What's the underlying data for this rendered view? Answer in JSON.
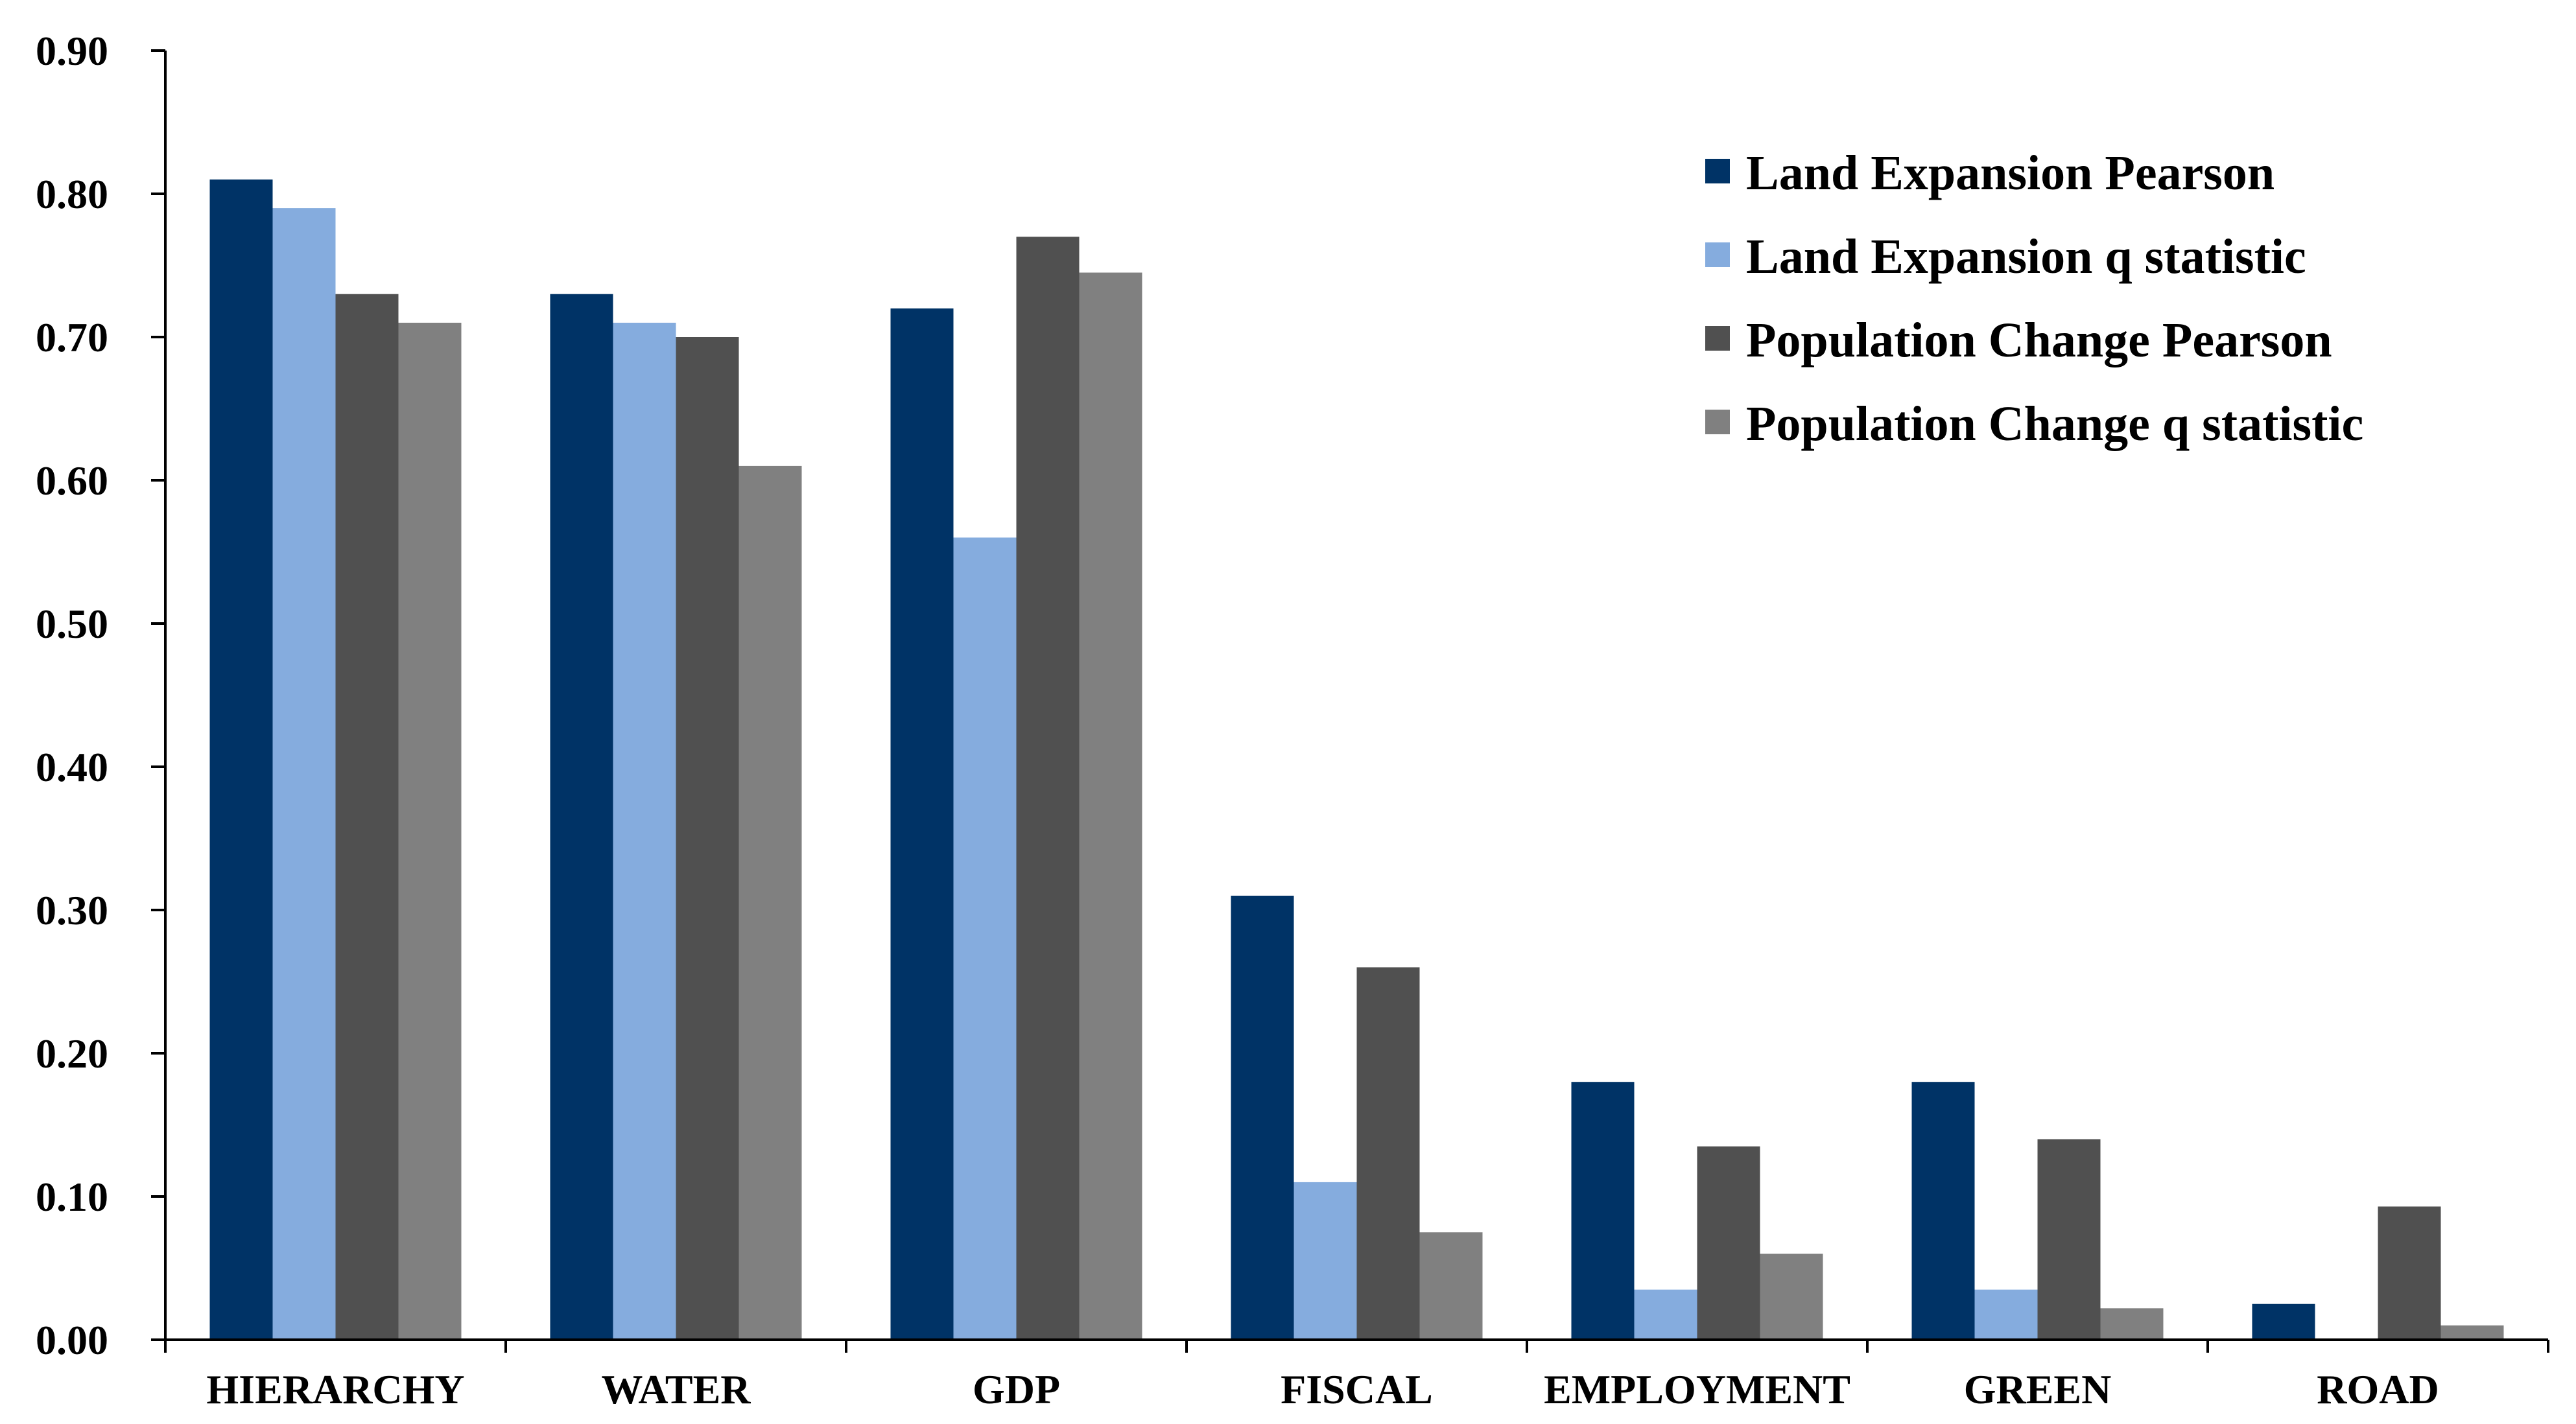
{
  "chart_data": {
    "type": "bar",
    "title": "",
    "xlabel": "",
    "ylabel": "",
    "ylim": [
      0,
      0.9
    ],
    "yticks": [
      "0.00",
      "0.10",
      "0.20",
      "0.30",
      "0.40",
      "0.50",
      "0.60",
      "0.70",
      "0.80",
      "0.90"
    ],
    "grid": false,
    "legend_position": "top-right",
    "categories": [
      "HIERARCHY",
      "WATER",
      "GDP",
      "FISCAL",
      "EMPLOYMENT",
      "GREEN",
      "ROAD"
    ],
    "series": [
      {
        "name": "Land Expansion Pearson",
        "color": "#003366",
        "values": [
          0.81,
          0.73,
          0.72,
          0.31,
          0.18,
          0.18,
          0.025
        ]
      },
      {
        "name": "Land Expansion q statistic",
        "color": "#85ACDE",
        "values": [
          0.79,
          0.71,
          0.56,
          0.11,
          0.035,
          0.035,
          0.0
        ]
      },
      {
        "name": "Population Change Pearson",
        "color": "#505050",
        "values": [
          0.73,
          0.7,
          0.77,
          0.26,
          0.135,
          0.14,
          0.093
        ]
      },
      {
        "name": "Population Change q statistic",
        "color": "#808080",
        "values": [
          0.71,
          0.61,
          0.745,
          0.075,
          0.06,
          0.022,
          0.01
        ]
      }
    ]
  }
}
